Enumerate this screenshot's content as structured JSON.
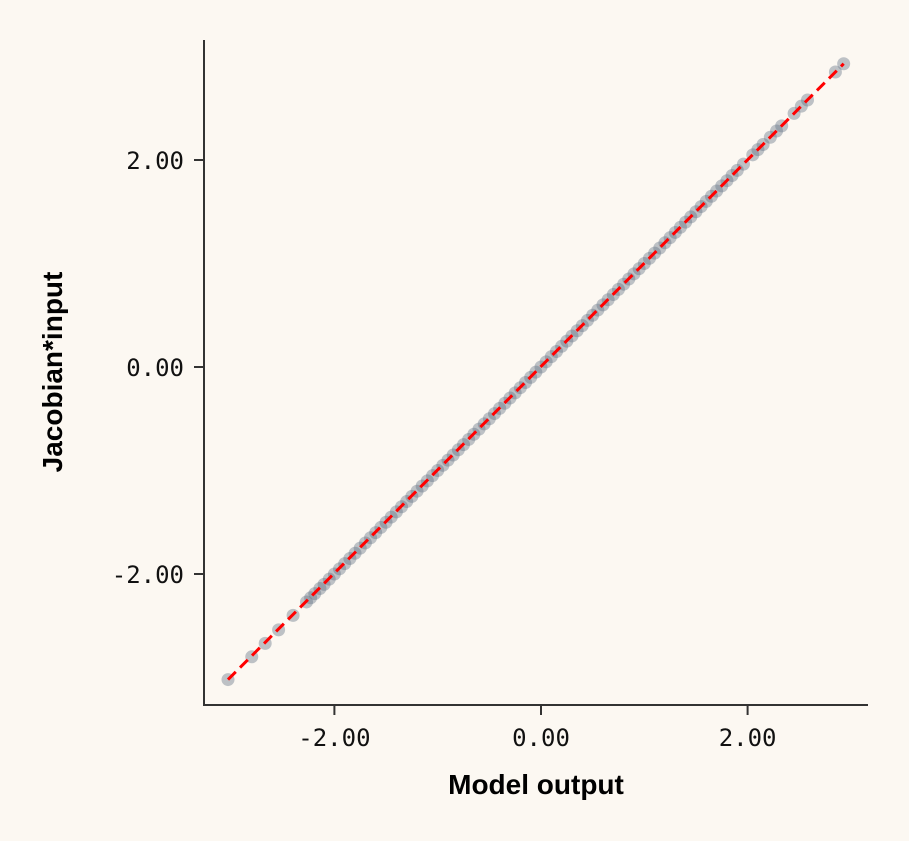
{
  "chart_data": {
    "type": "scatter",
    "title": "",
    "xlabel": "Model output",
    "ylabel": "Jacobian*input",
    "xlim": [
      -3.2,
      3.15
    ],
    "ylim": [
      -3.2,
      3.15
    ],
    "xticks": [
      -2,
      0,
      2
    ],
    "yticks": [
      -2,
      0,
      2
    ],
    "xtick_labels": [
      "-2.00",
      "0.00",
      "2.00"
    ],
    "ytick_labels": [
      "-2.00",
      "0.00",
      "2.00"
    ],
    "grid": false,
    "point_color": "#5f6f82",
    "line_color": "#ff0000",
    "line": {
      "style": "dashed",
      "from": [
        -3.03,
        -3.02
      ],
      "to": [
        2.93,
        2.93
      ]
    },
    "x": [
      -3.03,
      -2.8,
      -2.67,
      -2.54,
      -2.4,
      -2.27,
      -2.23,
      -2.19,
      -2.14,
      -2.1,
      -2.05,
      -2.0,
      -1.95,
      -1.9,
      -1.85,
      -1.8,
      -1.75,
      -1.7,
      -1.65,
      -1.6,
      -1.55,
      -1.5,
      -1.45,
      -1.4,
      -1.35,
      -1.3,
      -1.25,
      -1.2,
      -1.15,
      -1.1,
      -1.05,
      -1.0,
      -0.95,
      -0.9,
      -0.85,
      -0.8,
      -0.75,
      -0.7,
      -0.65,
      -0.6,
      -0.55,
      -0.5,
      -0.45,
      -0.4,
      -0.35,
      -0.3,
      -0.25,
      -0.2,
      -0.15,
      -0.1,
      -0.05,
      0.0,
      0.05,
      0.1,
      0.15,
      0.2,
      0.25,
      0.3,
      0.35,
      0.4,
      0.45,
      0.5,
      0.55,
      0.6,
      0.65,
      0.7,
      0.75,
      0.8,
      0.85,
      0.9,
      0.95,
      1.0,
      1.05,
      1.1,
      1.15,
      1.2,
      1.25,
      1.3,
      1.35,
      1.4,
      1.45,
      1.5,
      1.55,
      1.6,
      1.65,
      1.7,
      1.75,
      1.8,
      1.85,
      1.9,
      1.96,
      2.05,
      2.1,
      2.15,
      2.22,
      2.28,
      2.33,
      2.45,
      2.52,
      2.58,
      2.85,
      2.93
    ],
    "y": [
      -3.02,
      -2.8,
      -2.67,
      -2.54,
      -2.4,
      -2.27,
      -2.23,
      -2.19,
      -2.14,
      -2.1,
      -2.05,
      -2.0,
      -1.95,
      -1.9,
      -1.85,
      -1.8,
      -1.75,
      -1.7,
      -1.65,
      -1.6,
      -1.55,
      -1.5,
      -1.45,
      -1.4,
      -1.35,
      -1.3,
      -1.25,
      -1.2,
      -1.15,
      -1.1,
      -1.05,
      -1.0,
      -0.95,
      -0.9,
      -0.85,
      -0.8,
      -0.75,
      -0.7,
      -0.65,
      -0.6,
      -0.55,
      -0.5,
      -0.45,
      -0.4,
      -0.35,
      -0.3,
      -0.25,
      -0.2,
      -0.15,
      -0.1,
      -0.05,
      0.0,
      0.05,
      0.1,
      0.15,
      0.2,
      0.25,
      0.3,
      0.35,
      0.4,
      0.45,
      0.5,
      0.55,
      0.6,
      0.65,
      0.7,
      0.75,
      0.8,
      0.85,
      0.9,
      0.95,
      1.0,
      1.05,
      1.1,
      1.15,
      1.2,
      1.25,
      1.3,
      1.35,
      1.4,
      1.45,
      1.5,
      1.55,
      1.6,
      1.65,
      1.7,
      1.75,
      1.8,
      1.85,
      1.9,
      1.96,
      2.05,
      2.1,
      2.15,
      2.22,
      2.28,
      2.33,
      2.45,
      2.52,
      2.58,
      2.85,
      2.93
    ]
  }
}
